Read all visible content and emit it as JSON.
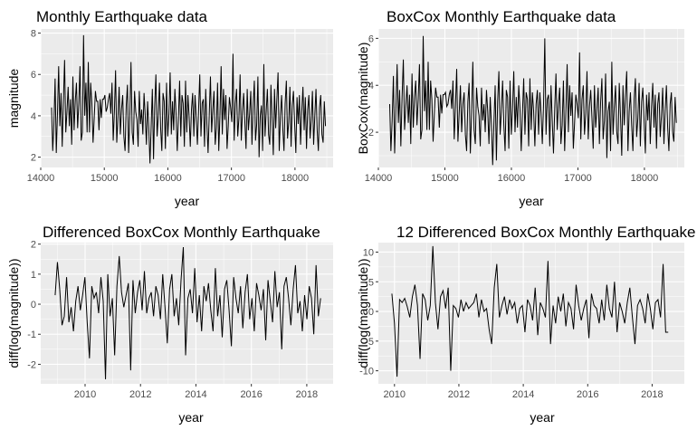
{
  "chart_data": [
    {
      "type": "line",
      "title": "Monthly Earthquake data",
      "xlabel": "year",
      "ylabel": "magnitude",
      "xlim": [
        14000,
        18600
      ],
      "ylim": [
        1.5,
        8.2
      ],
      "xticks": [
        14000,
        15000,
        16000,
        17000,
        18000
      ],
      "yticks": [
        2,
        4,
        6,
        8
      ],
      "x_start": 14170,
      "x_end": 18480,
      "series": [
        {
          "values": [
            4.4,
            2.3,
            3.6,
            5.8,
            2.2,
            4.1,
            6.4,
            3.5,
            5.1,
            2.5,
            4.7,
            6.7,
            3.2,
            4.2,
            5.4,
            3.5,
            4.8,
            2.6,
            5.9,
            3.3,
            4.7,
            5.6,
            3.4,
            4.6,
            6.4,
            2.8,
            3.2,
            7.9,
            4.0,
            5.6,
            3.2,
            6.6,
            3.2,
            5.6,
            4.6,
            2.7,
            3.9,
            5.2,
            4.7,
            4.7,
            3.3,
            4.8,
            3.9,
            4.8,
            4.8,
            5.0,
            4.2,
            4.4,
            4.8,
            5.1,
            4.1,
            5.6,
            2.8,
            4.2,
            6.2,
            2.7,
            3.9,
            5.4,
            3.1,
            4.3,
            5.0,
            3.0,
            2.3,
            4.5,
            5.5,
            2.2,
            3.9,
            6.6,
            3.2,
            2.6,
            5.2,
            4.2,
            3.8,
            2.5,
            5.2,
            3.6,
            4.3,
            3.1,
            5.1,
            4.0,
            2.6,
            4.7,
            3.4,
            1.7,
            3.5,
            5.3,
            1.9,
            4.5,
            6.0,
            3.0,
            4.0,
            5.6,
            3.4,
            2.3,
            5.1,
            4.7,
            2.4,
            5.6,
            3.0,
            4.1,
            6.1,
            3.1,
            4.7,
            3.3,
            5.3,
            4.1,
            2.3,
            3.9,
            5.7,
            3.0,
            5.0,
            4.6,
            2.5,
            5.7,
            3.2,
            5.0,
            4.0,
            2.5,
            4.3,
            5.1,
            3.0,
            5.0,
            3.9,
            2.6,
            4.3,
            6.0,
            3.0,
            4.6,
            4.8,
            2.5,
            5.3,
            3.6,
            2.2,
            4.1,
            5.9,
            3.2,
            4.3,
            5.2,
            2.6,
            3.4,
            5.6,
            2.3,
            4.0,
            6.4,
            3.1,
            5.3,
            3.8,
            5.0,
            2.4,
            3.5,
            4.9,
            4.4,
            3.7,
            7.0,
            2.8,
            4.6,
            5.3,
            3.0,
            3.9,
            6.0,
            2.8,
            4.2,
            5.1,
            3.7,
            2.4,
            5.3,
            3.3,
            4.1,
            5.2,
            2.6,
            4.5,
            5.7,
            2.8,
            3.6,
            5.9,
            2.0,
            4.0,
            4.5,
            2.3,
            6.5,
            3.0,
            4.2,
            5.3,
            3.1,
            2.6,
            5.5,
            3.8,
            2.1,
            5.3,
            3.4,
            4.8,
            6.1,
            2.3,
            4.0,
            5.0,
            3.4,
            2.3,
            4.6,
            5.7,
            2.9,
            3.7,
            5.4,
            2.5,
            4.5,
            5.2,
            3.6,
            2.2,
            4.9,
            3.6,
            5.0,
            2.6,
            4.2,
            5.4,
            3.3,
            4.9,
            2.4,
            4.3,
            5.0,
            2.9,
            3.8,
            5.2,
            2.6,
            4.0,
            5.3,
            3.3,
            2.3,
            4.4,
            5.0,
            3.1,
            2.7,
            4.7,
            3.5
          ],
          "color": "#000000"
        }
      ]
    },
    {
      "type": "line",
      "title": "BoxCox Monthly Earthquake data",
      "xlabel": "year",
      "ylabel": "BoxCox(magnitude)",
      "xlim": [
        14000,
        18600
      ],
      "ylim": [
        0.5,
        6.4
      ],
      "xticks": [
        14000,
        15000,
        16000,
        17000,
        18000
      ],
      "yticks": [
        2,
        4,
        6
      ],
      "x_start": 14170,
      "x_end": 18480,
      "series": [
        {
          "values": [
            3.2,
            1.2,
            2.5,
            4.4,
            1.1,
            3.0,
            4.9,
            2.4,
            3.8,
            1.4,
            3.5,
            5.1,
            2.1,
            3.1,
            4.0,
            2.4,
            3.6,
            1.5,
            4.5,
            2.2,
            3.5,
            4.2,
            2.3,
            3.4,
            4.9,
            1.7,
            2.1,
            6.1,
            2.9,
            4.2,
            2.1,
            5.0,
            2.1,
            4.2,
            3.4,
            1.6,
            2.8,
            3.9,
            3.5,
            3.5,
            2.2,
            3.6,
            2.8,
            3.6,
            3.6,
            3.7,
            3.1,
            3.2,
            3.6,
            3.8,
            3.0,
            4.2,
            1.7,
            3.1,
            4.7,
            1.6,
            2.8,
            4.0,
            2.0,
            3.2,
            3.7,
            1.9,
            1.2,
            3.3,
            4.1,
            1.1,
            2.8,
            5.0,
            2.1,
            1.5,
            3.9,
            3.1,
            2.7,
            1.4,
            3.9,
            2.5,
            3.2,
            2.0,
            3.8,
            2.9,
            1.5,
            3.5,
            2.3,
            0.6,
            2.4,
            4.0,
            0.8,
            3.3,
            4.6,
            1.9,
            2.9,
            4.2,
            2.3,
            1.2,
            3.8,
            3.5,
            1.3,
            4.2,
            1.9,
            3.0,
            4.6,
            2.0,
            3.5,
            2.2,
            4.0,
            3.0,
            1.2,
            2.8,
            4.3,
            1.9,
            3.7,
            3.4,
            1.4,
            4.3,
            2.1,
            3.7,
            2.9,
            1.4,
            3.2,
            3.8,
            1.9,
            3.7,
            2.8,
            1.5,
            3.2,
            6.0,
            1.9,
            3.4,
            3.6,
            1.4,
            4.0,
            2.5,
            1.1,
            3.0,
            4.5,
            2.1,
            3.2,
            3.9,
            1.5,
            2.3,
            4.2,
            1.2,
            2.9,
            4.9,
            2.0,
            4.0,
            2.7,
            3.7,
            1.3,
            2.4,
            3.6,
            3.2,
            2.6,
            5.4,
            1.7,
            3.4,
            4.0,
            1.9,
            2.8,
            4.6,
            1.7,
            3.1,
            3.8,
            2.6,
            1.3,
            4.0,
            2.2,
            3.0,
            3.9,
            1.5,
            3.3,
            4.3,
            1.7,
            2.5,
            4.5,
            0.9,
            2.9,
            3.3,
            1.2,
            5.0,
            1.9,
            3.1,
            4.0,
            2.0,
            1.5,
            4.1,
            2.7,
            1.0,
            4.0,
            2.3,
            3.6,
            4.6,
            1.2,
            2.9,
            3.7,
            2.3,
            1.2,
            3.4,
            4.3,
            1.8,
            2.6,
            4.1,
            1.4,
            3.3,
            3.9,
            2.5,
            1.1,
            3.6,
            2.5,
            3.7,
            1.5,
            3.1,
            4.1,
            2.2,
            3.6,
            1.3,
            3.2,
            3.7,
            1.8,
            2.7,
            3.9,
            1.5,
            2.9,
            4.0,
            2.2,
            1.2,
            3.2,
            3.7,
            2.0,
            1.6,
            3.5,
            2.4
          ],
          "color": "#000000"
        }
      ]
    },
    {
      "type": "line",
      "title": "Differenced BoxCox Monthly Earthquake",
      "xlabel": "year",
      "ylabel": "diff(log(magnitude))",
      "xlim": [
        2008.4,
        2018.95
      ],
      "ylim": [
        -2.65,
        2.05
      ],
      "xticks": [
        2010,
        2012,
        2014,
        2016,
        2018
      ],
      "yticks": [
        -2,
        -1,
        0,
        1,
        2
      ],
      "x_start": 2008.92,
      "x_end": 2018.5,
      "series": [
        {
          "values": [
            0.3,
            1.4,
            0.5,
            -0.7,
            -0.4,
            0.9,
            -0.6,
            -0.1,
            -0.9,
            0.1,
            0.6,
            -0.2,
            0.3,
            0.9,
            -0.6,
            -1.8,
            0.6,
            0.2,
            0.4,
            -0.3,
            0.9,
            0.1,
            -2.5,
            1.0,
            -0.4,
            0.2,
            -1.7,
            0.6,
            1.6,
            0.4,
            -0.1,
            0.3,
            0.7,
            -2.2,
            0.8,
            -0.3,
            0.4,
            0.8,
            -0.2,
            1.1,
            -0.3,
            0.2,
            0.4,
            -0.4,
            0.6,
            0.3,
            -0.5,
            1.0,
            -0.1,
            -1.3,
            0.5,
            1.0,
            -0.4,
            0.2,
            -0.7,
            0.8,
            1.9,
            -1.7,
            0.2,
            0.5,
            -0.3,
            1.2,
            -0.6,
            0.3,
            -0.9,
            0.6,
            0.1,
            0.7,
            -0.2,
            -0.9,
            1.2,
            -0.4,
            0.3,
            -1.1,
            0.5,
            0.8,
            -0.2,
            -1.4,
            0.9,
            0.2,
            -0.3,
            0.6,
            -0.8,
            0.4,
            1.0,
            -0.5,
            0.2,
            -0.9,
            0.7,
            0.3,
            -0.2,
            0.5,
            -1.2,
            0.8,
            0.1,
            -0.6,
            1.1,
            -0.1,
            0.4,
            -1.5,
            0.6,
            0.9,
            0.2,
            -0.7,
            0.5,
            1.3,
            -0.3,
            0.1,
            -0.9,
            0.3,
            -0.5,
            0.6,
            0.2,
            -1.0,
            1.3,
            -0.4,
            0.2
          ]
        }
      ]
    },
    {
      "type": "line",
      "title": "12 Differenced BoxCox Monthly Earthquake",
      "xlabel": "year",
      "ylabel": "diff(log(magnitude))",
      "xlim": [
        2009.5,
        2019.0
      ],
      "ylim": [
        -12.2,
        11.6
      ],
      "xticks": [
        2010,
        2012,
        2014,
        2016,
        2018
      ],
      "yticks": [
        -10,
        -5,
        0,
        5,
        10
      ],
      "x_start": 2009.92,
      "x_end": 2018.5,
      "series": [
        {
          "values": [
            3.0,
            -2.0,
            -11.0,
            2.0,
            1.5,
            2.2,
            0.8,
            -1.0,
            2.5,
            4.5,
            1.0,
            -8.0,
            3.0,
            2.0,
            -1.5,
            1.0,
            11.0,
            1.5,
            -3.0,
            2.5,
            3.5,
            0.5,
            4.0,
            -10.0,
            1.0,
            0.5,
            -1.0,
            2.0,
            0.0,
            1.5,
            0.5,
            1.0,
            1.5,
            3.0,
            -1.0,
            2.0,
            0.0,
            0.5,
            -3.0,
            -5.5,
            4.0,
            8.0,
            -1.0,
            1.0,
            2.5,
            -0.5,
            2.0,
            0.5,
            1.5,
            -2.0,
            0.5,
            1.0,
            -3.5,
            2.0,
            1.0,
            -1.5,
            4.0,
            -4.0,
            1.5,
            0.5,
            -1.0,
            8.5,
            -5.5,
            1.0,
            -2.0,
            2.5,
            0.0,
            3.0,
            -2.5,
            1.5,
            0.5,
            -3.0,
            4.5,
            1.0,
            -1.5,
            0.5,
            2.0,
            -4.5,
            3.0,
            1.0,
            0.5,
            -2.0,
            2.0,
            -1.5,
            4.5,
            0.5,
            -1.0,
            5.0,
            -3.5,
            1.5,
            0.0,
            -2.0,
            1.5,
            4.0,
            -1.0,
            -5.5,
            1.0,
            2.0,
            0.5,
            -2.0,
            3.0,
            0.5,
            -3.0,
            1.5,
            2.0,
            -1.0,
            8.0,
            -3.5,
            -3.5
          ]
        }
      ]
    }
  ]
}
